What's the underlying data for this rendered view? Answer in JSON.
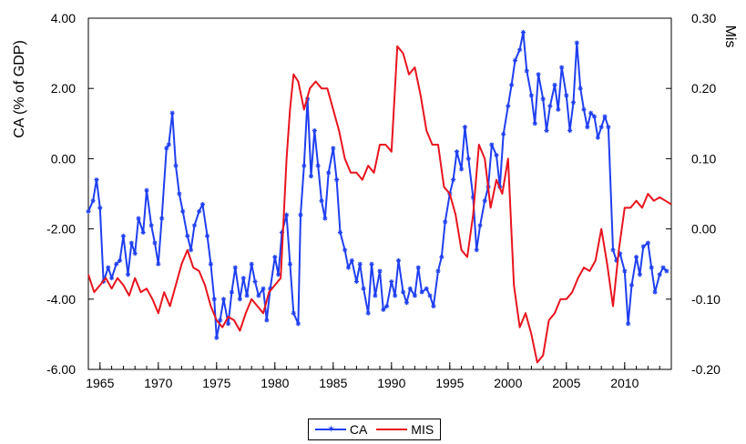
{
  "chart_data": {
    "type": "line",
    "title": "",
    "ylabel_left": "CA (% of GDP)",
    "ylabel_right": "Mis",
    "x_range": [
      1964,
      2014
    ],
    "x_ticks": [
      1965,
      1970,
      1975,
      1980,
      1985,
      1990,
      1995,
      2000,
      2005,
      2010
    ],
    "y_left": {
      "range": [
        -6,
        4
      ],
      "ticks": [
        "-6.00",
        "-4.00",
        "-2.00",
        "0.00",
        "2.00",
        "4.00"
      ]
    },
    "y_right": {
      "range": [
        -0.2,
        0.3
      ],
      "ticks": [
        "-0.20",
        "-0.10",
        "0.00",
        "0.10",
        "0.20",
        "0.30"
      ]
    },
    "grid": false,
    "legend_position": "bottom-center",
    "series": [
      {
        "name": "CA",
        "axis": "left",
        "color": "#1f3ff0",
        "marker": "star",
        "x": [
          1964.0,
          1964.4,
          1964.7,
          1965.0,
          1965.3,
          1965.7,
          1966.0,
          1966.4,
          1966.7,
          1967.0,
          1967.4,
          1967.7,
          1968.0,
          1968.3,
          1968.7,
          1969.0,
          1969.4,
          1969.7,
          1970.0,
          1970.3,
          1970.7,
          1970.9,
          1971.2,
          1971.5,
          1971.8,
          1972.1,
          1972.5,
          1972.8,
          1973.1,
          1973.5,
          1973.8,
          1974.2,
          1974.5,
          1974.8,
          1975.0,
          1975.3,
          1975.6,
          1976.0,
          1976.3,
          1976.6,
          1977.0,
          1977.3,
          1977.6,
          1978.0,
          1978.3,
          1978.6,
          1979.0,
          1979.3,
          1979.6,
          1980.0,
          1980.3,
          1980.6,
          1981.0,
          1981.3,
          1981.6,
          1982.0,
          1982.2,
          1982.5,
          1982.8,
          1983.1,
          1983.4,
          1983.7,
          1984.0,
          1984.3,
          1984.6,
          1985.0,
          1985.3,
          1985.6,
          1986.0,
          1986.3,
          1986.6,
          1987.0,
          1987.3,
          1987.6,
          1988.0,
          1988.3,
          1988.6,
          1989.0,
          1989.3,
          1989.6,
          1990.0,
          1990.3,
          1990.6,
          1991.0,
          1991.3,
          1991.6,
          1992.0,
          1992.3,
          1992.6,
          1993.0,
          1993.3,
          1993.6,
          1994.0,
          1994.3,
          1994.6,
          1995.0,
          1995.3,
          1995.6,
          1996.0,
          1996.3,
          1996.6,
          1997.0,
          1997.3,
          1997.6,
          1998.0,
          1998.3,
          1998.6,
          1999.0,
          1999.3,
          1999.6,
          2000.0,
          2000.3,
          2000.6,
          2001.0,
          2001.3,
          2001.6,
          2002.0,
          2002.3,
          2002.6,
          2003.0,
          2003.3,
          2003.6,
          2004.0,
          2004.3,
          2004.6,
          2005.0,
          2005.3,
          2005.6,
          2005.9,
          2006.2,
          2006.5,
          2006.8,
          2007.1,
          2007.4,
          2007.7,
          2008.0,
          2008.3,
          2008.6,
          2009.0,
          2009.3,
          2009.6,
          2010.0,
          2010.3,
          2010.6,
          2011.0,
          2011.3,
          2011.6,
          2012.0,
          2012.3,
          2012.6,
          2013.0,
          2013.3,
          2013.6
        ],
        "y": [
          -1.5,
          -1.2,
          -0.6,
          -1.4,
          -3.5,
          -3.1,
          -3.4,
          -3.0,
          -2.9,
          -2.2,
          -3.3,
          -2.4,
          -2.7,
          -1.7,
          -2.1,
          -0.9,
          -1.9,
          -2.4,
          -3.0,
          -1.7,
          0.3,
          0.4,
          1.3,
          -0.2,
          -1.0,
          -1.5,
          -2.2,
          -2.6,
          -1.9,
          -1.5,
          -1.3,
          -2.2,
          -3.0,
          -4.0,
          -5.1,
          -4.6,
          -4.0,
          -4.7,
          -3.8,
          -3.1,
          -4.0,
          -3.4,
          -3.9,
          -3.0,
          -3.5,
          -3.9,
          -3.7,
          -4.6,
          -3.7,
          -2.8,
          -3.3,
          -2.1,
          -1.6,
          -3.0,
          -4.4,
          -4.7,
          -1.6,
          -0.2,
          1.7,
          -0.5,
          0.8,
          -0.2,
          -1.2,
          -1.7,
          -0.4,
          0.3,
          -0.6,
          -2.1,
          -2.6,
          -3.1,
          -2.9,
          -3.5,
          -3.0,
          -3.7,
          -4.4,
          -3.0,
          -3.9,
          -3.2,
          -4.3,
          -4.2,
          -3.5,
          -3.9,
          -2.9,
          -3.8,
          -4.1,
          -3.7,
          -3.9,
          -3.1,
          -3.8,
          -3.7,
          -3.9,
          -4.2,
          -3.2,
          -2.8,
          -1.8,
          -1.0,
          -0.6,
          0.2,
          -0.3,
          0.9,
          0.0,
          -1.1,
          -2.6,
          -1.9,
          -1.2,
          -0.8,
          0.4,
          0.1,
          -0.8,
          0.7,
          1.5,
          2.1,
          2.8,
          3.1,
          3.6,
          2.5,
          1.8,
          1.0,
          2.4,
          1.7,
          0.8,
          1.5,
          2.1,
          1.4,
          2.6,
          1.8,
          0.8,
          1.6,
          3.3,
          2.0,
          1.4,
          0.9,
          1.3,
          1.2,
          0.6,
          0.9,
          1.2,
          0.9,
          -2.6,
          -2.9,
          -2.7,
          -3.2,
          -4.7,
          -3.6,
          -2.8,
          -3.3,
          -2.5,
          -2.4,
          -3.1,
          -3.8,
          -3.3,
          -3.1,
          -3.2
        ]
      },
      {
        "name": "MIS",
        "axis": "right",
        "color": "#e8141e",
        "marker": "none",
        "x": [
          1964.0,
          1964.5,
          1965.0,
          1965.5,
          1966.0,
          1966.5,
          1967.0,
          1967.5,
          1968.0,
          1968.5,
          1969.0,
          1969.5,
          1970.0,
          1970.5,
          1971.0,
          1971.5,
          1972.0,
          1972.5,
          1973.0,
          1973.5,
          1974.0,
          1974.5,
          1975.0,
          1975.5,
          1976.0,
          1976.5,
          1977.0,
          1977.5,
          1978.0,
          1978.5,
          1979.0,
          1979.5,
          1980.0,
          1980.5,
          1981.0,
          1981.3,
          1981.6,
          1982.0,
          1982.5,
          1983.0,
          1983.5,
          1984.0,
          1984.5,
          1985.0,
          1985.5,
          1986.0,
          1986.5,
          1987.0,
          1987.5,
          1988.0,
          1988.5,
          1989.0,
          1989.5,
          1990.0,
          1990.5,
          1991.0,
          1991.5,
          1992.0,
          1992.5,
          1993.0,
          1993.5,
          1994.0,
          1994.5,
          1995.0,
          1995.5,
          1996.0,
          1996.5,
          1997.0,
          1997.5,
          1998.0,
          1998.5,
          1999.0,
          1999.5,
          2000.0,
          2000.5,
          2001.0,
          2001.5,
          2002.0,
          2002.5,
          2003.0,
          2003.5,
          2004.0,
          2004.5,
          2005.0,
          2005.5,
          2006.0,
          2006.5,
          2007.0,
          2007.5,
          2008.0,
          2008.5,
          2009.0,
          2009.5,
          2010.0,
          2010.5,
          2011.0,
          2011.5,
          2012.0,
          2012.5,
          2013.0,
          2013.5,
          2014.0
        ],
        "y": [
          -0.065,
          -0.09,
          -0.08,
          -0.07,
          -0.085,
          -0.07,
          -0.08,
          -0.095,
          -0.07,
          -0.09,
          -0.085,
          -0.1,
          -0.12,
          -0.09,
          -0.11,
          -0.08,
          -0.05,
          -0.03,
          -0.055,
          -0.06,
          -0.08,
          -0.11,
          -0.13,
          -0.14,
          -0.125,
          -0.13,
          -0.145,
          -0.12,
          -0.1,
          -0.11,
          -0.12,
          -0.09,
          -0.08,
          -0.07,
          0.1,
          0.17,
          0.22,
          0.21,
          0.17,
          0.2,
          0.21,
          0.2,
          0.2,
          0.17,
          0.14,
          0.1,
          0.08,
          0.08,
          0.07,
          0.09,
          0.08,
          0.12,
          0.12,
          0.11,
          0.26,
          0.25,
          0.22,
          0.23,
          0.19,
          0.14,
          0.12,
          0.12,
          0.06,
          0.05,
          0.02,
          -0.03,
          -0.04,
          0.02,
          0.12,
          0.1,
          0.03,
          0.07,
          0.05,
          0.1,
          -0.08,
          -0.14,
          -0.12,
          -0.15,
          -0.19,
          -0.18,
          -0.13,
          -0.12,
          -0.1,
          -0.1,
          -0.09,
          -0.07,
          -0.055,
          -0.06,
          -0.045,
          0.0,
          -0.05,
          -0.11,
          -0.03,
          0.03,
          0.03,
          0.04,
          0.03,
          0.05,
          0.04,
          0.045,
          0.04,
          0.035
        ]
      }
    ]
  }
}
